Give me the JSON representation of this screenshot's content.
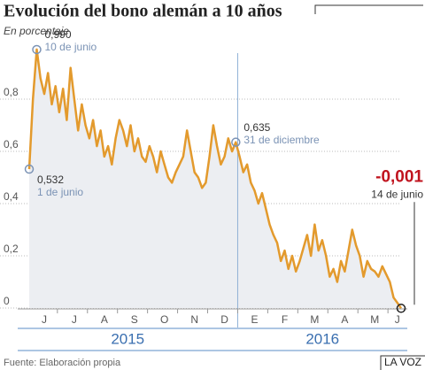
{
  "chart_data": {
    "type": "line",
    "title": "Evolución del bono alemán a 10 años",
    "subtitle": "En porcentaje",
    "source": "Fuente: Elaboración propia",
    "brand": "LA VOZ",
    "color": "#e39a2d",
    "area_color": "#eceef2",
    "grid": true,
    "ylim": [
      0,
      1
    ],
    "yticks": [
      0,
      {
        "value": 0.2,
        "label": "0,2"
      },
      {
        "value": 0.4,
        "label": "0,4"
      },
      {
        "value": 0.6,
        "label": "0,6"
      },
      {
        "value": 0.8,
        "label": "0,8"
      }
    ],
    "x_groups": [
      "2015",
      "2016"
    ],
    "categories": [
      null,
      null,
      null,
      null,
      "J",
      null,
      null,
      null,
      null,
      null,
      null,
      null,
      "J",
      null,
      null,
      null,
      null,
      null,
      null,
      null,
      "A",
      null,
      null,
      null,
      null,
      null,
      null,
      null,
      "S",
      null,
      null,
      null,
      null,
      null,
      null,
      null,
      "O",
      null,
      null,
      null,
      null,
      null,
      null,
      null,
      "N",
      null,
      null,
      null,
      null,
      null,
      null,
      null,
      "D",
      null,
      null,
      null,
      null,
      null,
      null,
      null,
      "E",
      null,
      null,
      null,
      null,
      null,
      null,
      null,
      "F",
      null,
      null,
      null,
      null,
      null,
      null,
      null,
      "M",
      null,
      null,
      null,
      null,
      null,
      null,
      null,
      "A",
      null,
      null,
      null,
      null,
      null,
      null,
      null,
      "M",
      null,
      null,
      null,
      null,
      null,
      "J",
      null
    ],
    "values": [
      0.532,
      0.8,
      0.99,
      0.88,
      0.82,
      0.9,
      0.78,
      0.85,
      0.75,
      0.84,
      0.72,
      0.92,
      0.8,
      0.68,
      0.78,
      0.7,
      0.65,
      0.72,
      0.62,
      0.68,
      0.58,
      0.62,
      0.55,
      0.65,
      0.72,
      0.68,
      0.62,
      0.7,
      0.6,
      0.65,
      0.58,
      0.56,
      0.62,
      0.58,
      0.52,
      0.6,
      0.55,
      0.5,
      0.48,
      0.52,
      0.55,
      0.58,
      0.68,
      0.6,
      0.52,
      0.5,
      0.46,
      0.48,
      0.58,
      0.7,
      0.62,
      0.55,
      0.58,
      0.65,
      0.6,
      0.635,
      0.58,
      0.52,
      0.55,
      0.48,
      0.45,
      0.4,
      0.44,
      0.38,
      0.32,
      0.28,
      0.25,
      0.18,
      0.22,
      0.15,
      0.2,
      0.14,
      0.18,
      0.23,
      0.28,
      0.2,
      0.32,
      0.22,
      0.26,
      0.2,
      0.12,
      0.15,
      0.1,
      0.18,
      0.14,
      0.22,
      0.3,
      0.24,
      0.2,
      0.12,
      0.18,
      0.15,
      0.14,
      0.12,
      0.16,
      0.13,
      0.1,
      0.04,
      0.02,
      -0.001
    ],
    "value_labels": [
      "0,532",
      null,
      "0,990",
      null,
      null,
      null,
      null,
      null,
      null,
      null,
      null,
      null,
      null,
      null,
      null,
      null,
      null,
      null,
      null,
      null,
      null,
      null,
      null,
      null,
      null,
      null,
      null,
      null,
      null,
      null,
      null,
      null,
      null,
      null,
      null,
      null,
      null,
      null,
      null,
      null,
      null,
      null,
      null,
      null,
      null,
      null,
      null,
      null,
      null,
      null,
      null,
      null,
      null,
      null,
      null,
      "0,635",
      null,
      null,
      null,
      null,
      null,
      null,
      null,
      null,
      null,
      null,
      null,
      null,
      null,
      null,
      null,
      null,
      null,
      null,
      null,
      null,
      null,
      null,
      null,
      null,
      null,
      null,
      null,
      null,
      null,
      null,
      null,
      null,
      null,
      null,
      null,
      null,
      null,
      null,
      null,
      null,
      null,
      null,
      null,
      "-0,001"
    ],
    "point_labels": [
      "1 de junio",
      null,
      "10 de junio",
      null,
      null,
      null,
      null,
      null,
      null,
      null,
      null,
      null,
      null,
      null,
      null,
      null,
      null,
      null,
      null,
      null,
      null,
      null,
      null,
      null,
      null,
      null,
      null,
      null,
      null,
      null,
      null,
      null,
      null,
      null,
      null,
      null,
      null,
      null,
      null,
      null,
      null,
      null,
      null,
      null,
      null,
      null,
      null,
      null,
      null,
      null,
      null,
      null,
      null,
      null,
      null,
      "31 de diciembre",
      null,
      null,
      null,
      null,
      null,
      null,
      null,
      null,
      null,
      null,
      null,
      null,
      null,
      null,
      null,
      null,
      null,
      null,
      null,
      null,
      null,
      null,
      null,
      null,
      null,
      null,
      null,
      null,
      null,
      null,
      null,
      null,
      null,
      null,
      null,
      null,
      null,
      null,
      null,
      null,
      null,
      null,
      null,
      "14 de junio"
    ]
  }
}
